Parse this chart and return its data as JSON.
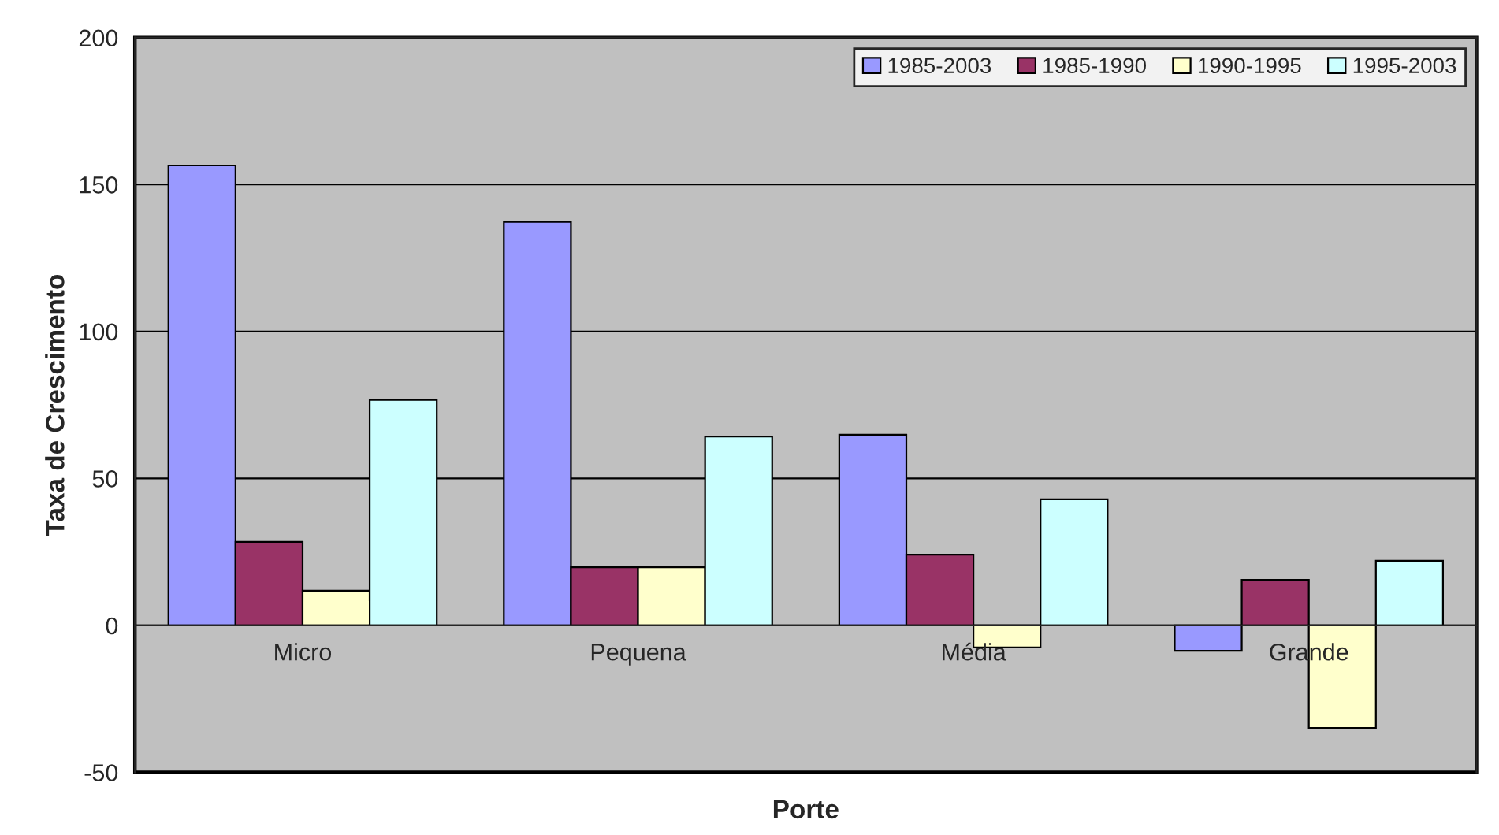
{
  "chart_data": {
    "type": "bar",
    "xlabel": "Porte",
    "ylabel": "Taxa de Crescimento",
    "categories": [
      "Micro",
      "Pequena",
      "Média",
      "Grande"
    ],
    "series": [
      {
        "name": "1985-2003",
        "color": "#9999ff",
        "values": [
          156.5,
          137.3,
          64.9,
          -8.6
        ]
      },
      {
        "name": "1985-1990",
        "color": "#993366",
        "values": [
          28.4,
          19.8,
          24.1,
          15.5
        ]
      },
      {
        "name": "1990-1995",
        "color": "#ffffcc",
        "values": [
          11.8,
          19.8,
          -7.5,
          -34.9
        ]
      },
      {
        "name": "1995-2003",
        "color": "#ccffff",
        "values": [
          76.7,
          64.3,
          42.9,
          22.0
        ]
      }
    ],
    "ylim": [
      -50,
      200
    ],
    "yticks": [
      -50,
      0,
      50,
      100,
      150,
      200
    ],
    "grid": "y",
    "legend": "top right"
  }
}
